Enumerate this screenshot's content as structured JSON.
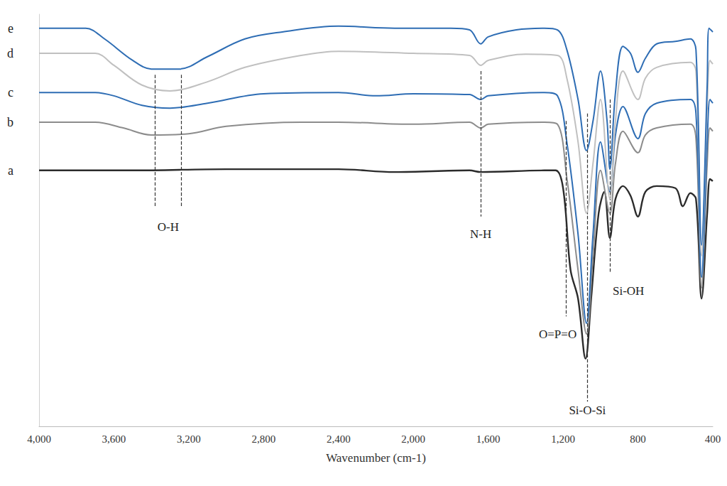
{
  "chart_data": {
    "type": "line",
    "x_label": "Wavenumber (cm-1)",
    "xlim": [
      4000,
      400
    ],
    "xticks": [
      4000,
      3600,
      3200,
      2800,
      2400,
      2000,
      1600,
      1200,
      800,
      400
    ],
    "ylim": [
      0,
      100
    ],
    "tick_labels": "x",
    "grid": false,
    "series": [
      {
        "name": "a",
        "color": "#2b2b2b",
        "x": [
          4000,
          3500,
          3000,
          2400,
          2100,
          1700,
          1640,
          1300,
          1240,
          1200,
          1160,
          1120,
          1080,
          1050,
          1010,
          980,
          950,
          920,
          880,
          840,
          800,
          760,
          700,
          600,
          560,
          520,
          490,
          460,
          430,
          415,
          400
        ],
        "values": [
          62.1,
          62.1,
          62.4,
          62.4,
          61.7,
          62.1,
          61.7,
          62.1,
          62.1,
          57.8,
          37.9,
          31.0,
          16.4,
          31.0,
          51.7,
          56.9,
          45.7,
          55.2,
          58.3,
          56.0,
          50.9,
          56.9,
          58.3,
          57.8,
          53.4,
          56.6,
          55.2,
          31.0,
          51.7,
          60.0,
          59.5
        ]
      },
      {
        "name": "b",
        "color": "#8c8c8c",
        "x": [
          4000,
          3700,
          3550,
          3400,
          3200,
          3000,
          2600,
          2400,
          2000,
          1700,
          1640,
          1600,
          1300,
          1230,
          1180,
          1120,
          1075,
          1040,
          1000,
          950,
          920,
          880,
          800,
          760,
          700,
          520,
          490,
          460,
          430,
          415,
          400
        ],
        "values": [
          73.8,
          73.8,
          72.4,
          70.7,
          71.0,
          72.8,
          73.8,
          73.8,
          73.3,
          73.8,
          72.4,
          73.3,
          73.8,
          73.3,
          60.3,
          37.9,
          22.4,
          41.4,
          62.1,
          51.7,
          63.8,
          71.6,
          66.4,
          70.7,
          72.4,
          73.3,
          69.8,
          33.6,
          63.8,
          72.4,
          71.6
        ]
      },
      {
        "name": "c",
        "color": "#2e6db4",
        "x": [
          4000,
          3700,
          3600,
          3450,
          3300,
          3100,
          2800,
          2400,
          2200,
          2000,
          1700,
          1640,
          1600,
          1300,
          1230,
          1180,
          1120,
          1075,
          1040,
          1000,
          950,
          920,
          880,
          800,
          760,
          700,
          520,
          490,
          460,
          430,
          415,
          400
        ],
        "values": [
          81.0,
          81.0,
          80.2,
          77.9,
          77.2,
          78.4,
          80.7,
          81.0,
          80.2,
          80.7,
          80.5,
          79.3,
          80.2,
          81.0,
          80.2,
          69.0,
          46.6,
          25.0,
          46.6,
          69.0,
          56.9,
          70.7,
          77.6,
          69.8,
          75.9,
          78.4,
          79.3,
          75.9,
          36.2,
          69.0,
          79.3,
          78.4
        ]
      },
      {
        "name": "d",
        "color": "#c0c0c0",
        "x": [
          4000,
          3700,
          3600,
          3450,
          3300,
          3100,
          2900,
          2600,
          2400,
          2000,
          1700,
          1640,
          1600,
          1400,
          1230,
          1180,
          1120,
          1075,
          1040,
          1000,
          950,
          920,
          880,
          800,
          760,
          700,
          520,
          490,
          460,
          430,
          415,
          400
        ],
        "values": [
          90.5,
          90.5,
          87.6,
          82.8,
          81.4,
          83.6,
          87.1,
          90.0,
          91.0,
          90.5,
          90.0,
          87.6,
          88.8,
          90.3,
          90.0,
          84.5,
          69.0,
          51.7,
          63.8,
          79.3,
          55.2,
          74.1,
          86.2,
          79.3,
          84.5,
          87.1,
          88.3,
          86.2,
          41.4,
          77.6,
          88.8,
          87.9
        ]
      },
      {
        "name": "e",
        "color": "#2e6db4",
        "x": [
          4000,
          3750,
          3650,
          3500,
          3400,
          3250,
          3100,
          2900,
          2700,
          2400,
          2100,
          1800,
          1700,
          1640,
          1600,
          1450,
          1300,
          1230,
          1180,
          1120,
          1075,
          1040,
          1000,
          965,
          950,
          920,
          880,
          840,
          800,
          760,
          700,
          600,
          520,
          490,
          460,
          430,
          420,
          400
        ],
        "values": [
          96.6,
          96.6,
          94.0,
          88.8,
          86.7,
          86.7,
          89.7,
          94.0,
          95.7,
          97.1,
          96.6,
          96.6,
          96.2,
          92.8,
          94.5,
          96.2,
          96.6,
          96.2,
          91.4,
          79.3,
          66.9,
          74.1,
          86.2,
          74.1,
          62.4,
          81.0,
          92.2,
          90.5,
          85.9,
          89.3,
          92.8,
          93.4,
          94.0,
          91.4,
          44.0,
          82.8,
          96.6,
          95.7
        ]
      }
    ],
    "annotations": [
      {
        "text": "O-H",
        "x": [
          3380,
          3240
        ]
      },
      {
        "text": "N-H",
        "x": [
          1640
        ]
      },
      {
        "text": "O=P=O",
        "x": [
          1185
        ]
      },
      {
        "text": "Si-O-Si",
        "x": [
          1070
        ]
      },
      {
        "text": "Si-OH",
        "x": [
          950
        ]
      }
    ]
  }
}
